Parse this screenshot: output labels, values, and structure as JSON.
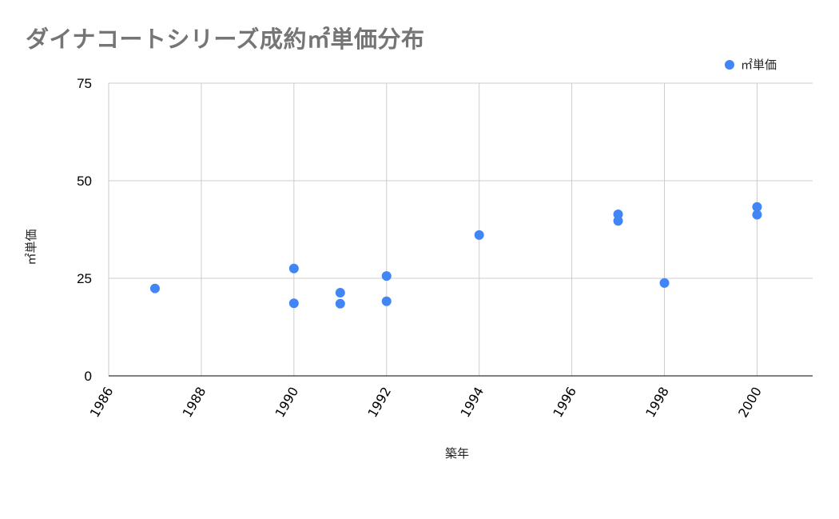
{
  "title": "ダイナコートシリーズ成約㎡単価分布",
  "legend": {
    "label": "㎡単価",
    "color": "#4285f4"
  },
  "colors": {
    "point": "#4285f4",
    "grid": "#cccccc",
    "axis": "#333333",
    "title": "#757575"
  },
  "chart_data": {
    "type": "scatter",
    "title": "ダイナコートシリーズ成約㎡単価分布",
    "xlabel": "築年",
    "ylabel": "㎡単価",
    "xlim": [
      1986,
      2001.2
    ],
    "ylim": [
      0,
      75
    ],
    "x_ticks": [
      "1986",
      "1988",
      "1990",
      "1992",
      "1994",
      "1996",
      "1998",
      "2000"
    ],
    "y_ticks": [
      "0",
      "25",
      "50",
      "75"
    ],
    "grid": true,
    "legend_position": "top-right",
    "series": [
      {
        "name": "㎡単価",
        "points": [
          {
            "x": 1987,
            "y": 22.4
          },
          {
            "x": 1990,
            "y": 27.5
          },
          {
            "x": 1990,
            "y": 18.6
          },
          {
            "x": 1991,
            "y": 21.3
          },
          {
            "x": 1991,
            "y": 18.5
          },
          {
            "x": 1992,
            "y": 25.6
          },
          {
            "x": 1992,
            "y": 19.1
          },
          {
            "x": 1994,
            "y": 36.1
          },
          {
            "x": 1997,
            "y": 41.4
          },
          {
            "x": 1997,
            "y": 39.7
          },
          {
            "x": 1998,
            "y": 23.8
          },
          {
            "x": 2000,
            "y": 43.3
          },
          {
            "x": 2000,
            "y": 41.3
          }
        ]
      }
    ]
  }
}
